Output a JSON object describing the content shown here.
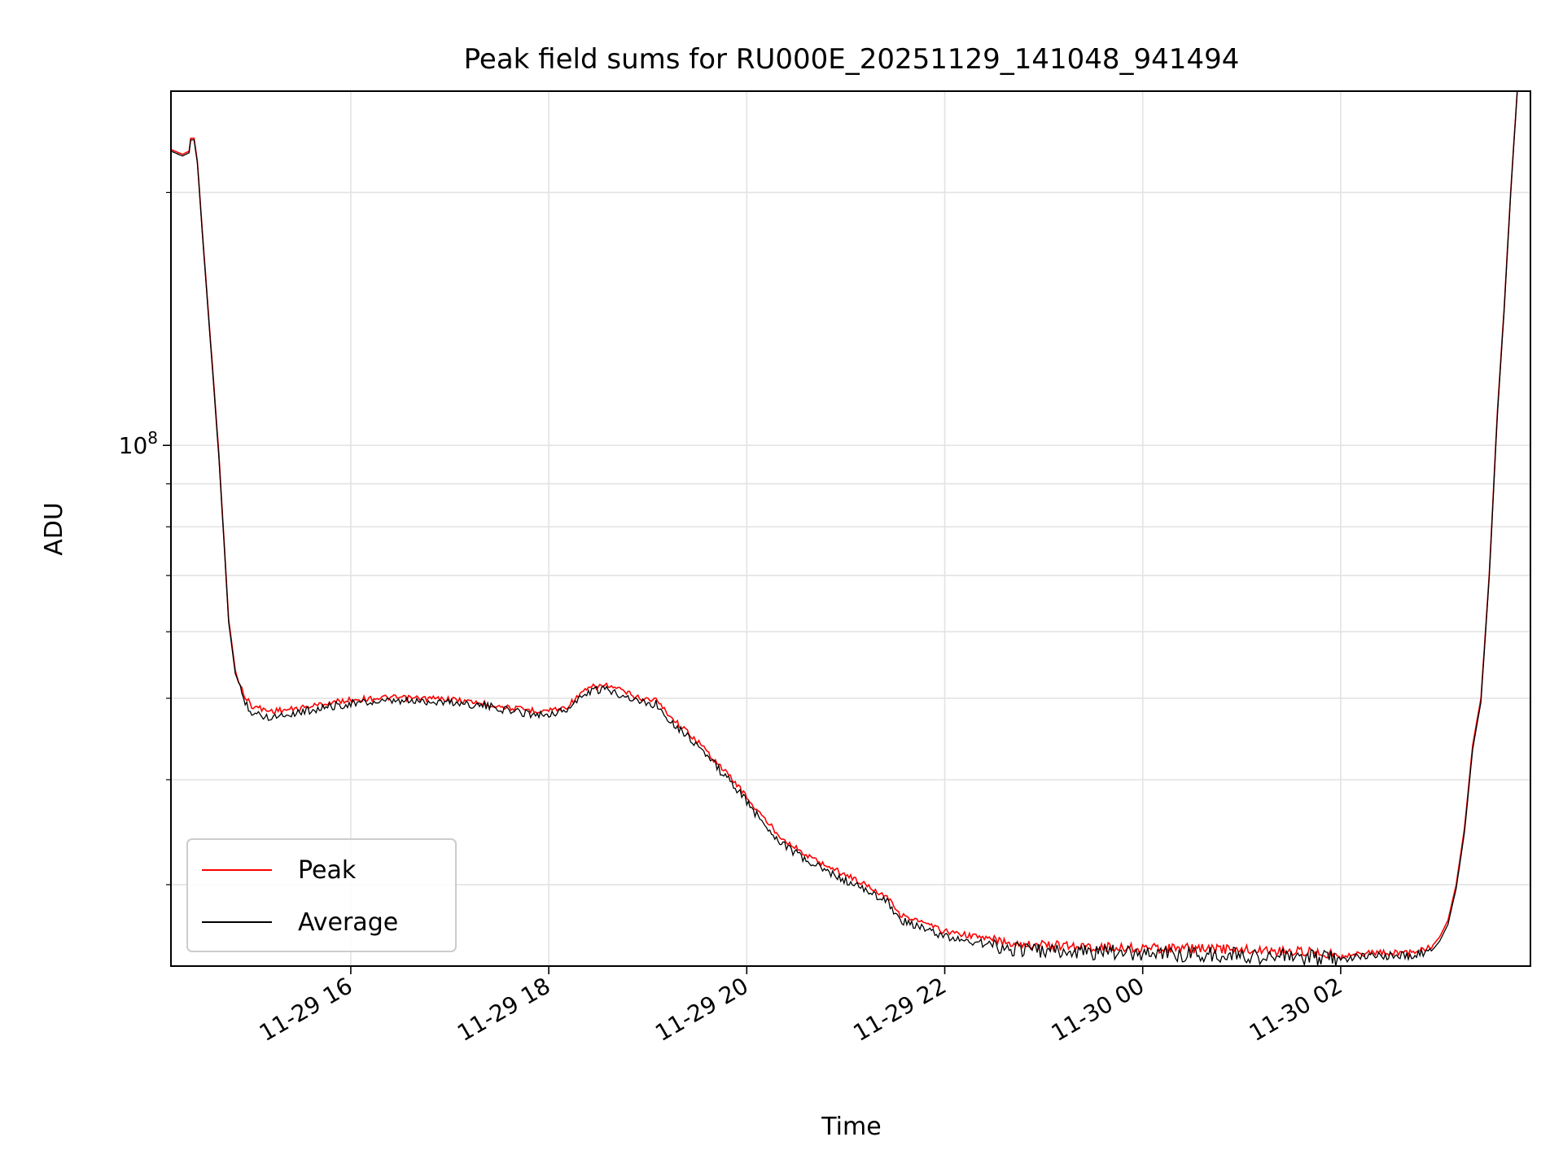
{
  "chart_data": {
    "type": "line",
    "title": "Peak field sums for RU000E_20251129_141048_941494",
    "xlabel": "Time",
    "ylabel": "ADU",
    "y_scale": "log",
    "x_tick_labels": [
      "11-29 16",
      "11-29 18",
      "11-29 20",
      "11-29 22",
      "11-30 00",
      "11-30 02"
    ],
    "x_ticks": [
      "2025-11-29 16:00",
      "2025-11-29 18:00",
      "2025-11-29 20:00",
      "2025-11-29 22:00",
      "2025-11-30 00:00",
      "2025-11-30 02:00"
    ],
    "xlim": [
      "2025-11-29 14:11",
      "2025-11-30 03:55"
    ],
    "y_major_tick": {
      "value": 100000000,
      "base": "10",
      "exponent": "8"
    },
    "y_minor_ticks": [
      30000000,
      40000000,
      50000000,
      60000000,
      70000000,
      80000000,
      90000000,
      200000000
    ],
    "ylim": [
      24000000,
      264000000
    ],
    "grid": true,
    "legend_position": "lower-left",
    "series": [
      {
        "name": "Peak",
        "color": "#ff0000",
        "points": [
          [
            "2025-11-29 14:11",
            225000000
          ],
          [
            "2025-11-29 14:18",
            222000000
          ],
          [
            "2025-11-29 14:22",
            224000000
          ],
          [
            "2025-11-29 14:23",
            232000000
          ],
          [
            "2025-11-29 14:25",
            232000000
          ],
          [
            "2025-11-29 14:27",
            218000000
          ],
          [
            "2025-11-29 14:30",
            180000000
          ],
          [
            "2025-11-29 14:33",
            150000000
          ],
          [
            "2025-11-29 14:37",
            118000000
          ],
          [
            "2025-11-29 14:40",
            98000000
          ],
          [
            "2025-11-29 14:43",
            78000000
          ],
          [
            "2025-11-29 14:46",
            62000000
          ],
          [
            "2025-11-29 14:50",
            54000000
          ],
          [
            "2025-11-29 14:55",
            50500000
          ],
          [
            "2025-11-29 15:00",
            49000000
          ],
          [
            "2025-11-29 15:10",
            48300000
          ],
          [
            "2025-11-29 15:25",
            48500000
          ],
          [
            "2025-11-29 15:45",
            49300000
          ],
          [
            "2025-11-29 16:00",
            49800000
          ],
          [
            "2025-11-29 16:20",
            50100000
          ],
          [
            "2025-11-29 16:40",
            50000000
          ],
          [
            "2025-11-29 17:00",
            49900000
          ],
          [
            "2025-11-29 17:20",
            49300000
          ],
          [
            "2025-11-29 17:40",
            48600000
          ],
          [
            "2025-11-29 17:55",
            48300000
          ],
          [
            "2025-11-29 18:10",
            48700000
          ],
          [
            "2025-11-29 18:18",
            50300000
          ],
          [
            "2025-11-29 18:25",
            51500000
          ],
          [
            "2025-11-29 18:35",
            51800000
          ],
          [
            "2025-11-29 18:45",
            51000000
          ],
          [
            "2025-11-29 18:55",
            50000000
          ],
          [
            "2025-11-29 19:05",
            49800000
          ],
          [
            "2025-11-29 19:15",
            47300000
          ],
          [
            "2025-11-29 19:30",
            44500000
          ],
          [
            "2025-11-29 19:40",
            42300000
          ],
          [
            "2025-11-29 19:55",
            39300000
          ],
          [
            "2025-11-29 20:05",
            37000000
          ],
          [
            "2025-11-29 20:20",
            34300000
          ],
          [
            "2025-11-29 20:35",
            32600000
          ],
          [
            "2025-11-29 20:50",
            31500000
          ],
          [
            "2025-11-29 21:05",
            30500000
          ],
          [
            "2025-11-29 21:20",
            29400000
          ],
          [
            "2025-11-29 21:27",
            28900000
          ],
          [
            "2025-11-29 21:32",
            27700000
          ],
          [
            "2025-11-29 21:45",
            27100000
          ],
          [
            "2025-11-29 22:00",
            26400000
          ],
          [
            "2025-11-29 22:10",
            26200000
          ],
          [
            "2025-11-29 22:20",
            26000000
          ],
          [
            "2025-11-29 22:40",
            25600000
          ],
          [
            "2025-11-29 23:00",
            25400000
          ],
          [
            "2025-11-29 23:30",
            25300000
          ],
          [
            "2025-11-30 00:00",
            25200000
          ],
          [
            "2025-11-30 00:30",
            25200000
          ],
          [
            "2025-11-30 01:00",
            25100000
          ],
          [
            "2025-11-30 01:30",
            25000000
          ],
          [
            "2025-11-30 01:50",
            24900000
          ],
          [
            "2025-11-30 02:00",
            24700000
          ],
          [
            "2025-11-30 02:20",
            24900000
          ],
          [
            "2025-11-30 02:40",
            24900000
          ],
          [
            "2025-11-30 02:55",
            25300000
          ],
          [
            "2025-11-30 03:00",
            26000000
          ],
          [
            "2025-11-30 03:05",
            27200000
          ],
          [
            "2025-11-30 03:10",
            30000000
          ],
          [
            "2025-11-30 03:15",
            35000000
          ],
          [
            "2025-11-30 03:20",
            44000000
          ],
          [
            "2025-11-30 03:25",
            50000000
          ],
          [
            "2025-11-30 03:30",
            70000000
          ],
          [
            "2025-11-30 03:35",
            110000000
          ],
          [
            "2025-11-30 03:39",
            145000000
          ],
          [
            "2025-11-30 03:43",
            200000000
          ],
          [
            "2025-11-30 03:47",
            264000000
          ]
        ]
      },
      {
        "name": "Average",
        "color": "#000000",
        "points": [
          [
            "2025-11-29 14:11",
            224000000
          ],
          [
            "2025-11-29 14:18",
            221000000
          ],
          [
            "2025-11-29 14:22",
            223000000
          ],
          [
            "2025-11-29 14:23",
            231000000
          ],
          [
            "2025-11-29 14:25",
            231000000
          ],
          [
            "2025-11-29 14:27",
            217000000
          ],
          [
            "2025-11-29 14:30",
            179000000
          ],
          [
            "2025-11-29 14:33",
            149000000
          ],
          [
            "2025-11-29 14:37",
            117000000
          ],
          [
            "2025-11-29 14:40",
            97000000
          ],
          [
            "2025-11-29 14:43",
            77500000
          ],
          [
            "2025-11-29 14:46",
            61500000
          ],
          [
            "2025-11-29 14:50",
            53500000
          ],
          [
            "2025-11-29 14:55",
            50000000
          ],
          [
            "2025-11-29 15:00",
            48000000
          ],
          [
            "2025-11-29 15:10",
            47500000
          ],
          [
            "2025-11-29 15:25",
            48000000
          ],
          [
            "2025-11-29 15:45",
            48800000
          ],
          [
            "2025-11-29 16:00",
            49300000
          ],
          [
            "2025-11-29 16:20",
            49500000
          ],
          [
            "2025-11-29 16:40",
            49600000
          ],
          [
            "2025-11-29 17:00",
            49500000
          ],
          [
            "2025-11-29 17:20",
            49000000
          ],
          [
            "2025-11-29 17:40",
            48200000
          ],
          [
            "2025-11-29 17:55",
            47800000
          ],
          [
            "2025-11-29 18:10",
            48300000
          ],
          [
            "2025-11-29 18:18",
            49800000
          ],
          [
            "2025-11-29 18:25",
            51000000
          ],
          [
            "2025-11-29 18:35",
            51200000
          ],
          [
            "2025-11-29 18:45",
            50500000
          ],
          [
            "2025-11-29 18:55",
            49500000
          ],
          [
            "2025-11-29 19:05",
            49200000
          ],
          [
            "2025-11-29 19:15",
            46800000
          ],
          [
            "2025-11-29 19:30",
            44000000
          ],
          [
            "2025-11-29 19:40",
            41800000
          ],
          [
            "2025-11-29 19:55",
            38800000
          ],
          [
            "2025-11-29 20:05",
            36500000
          ],
          [
            "2025-11-29 20:20",
            33800000
          ],
          [
            "2025-11-29 20:35",
            32100000
          ],
          [
            "2025-11-29 20:50",
            31000000
          ],
          [
            "2025-11-29 21:05",
            30000000
          ],
          [
            "2025-11-29 21:20",
            29000000
          ],
          [
            "2025-11-29 21:27",
            28400000
          ],
          [
            "2025-11-29 21:32",
            27300000
          ],
          [
            "2025-11-29 21:45",
            26700000
          ],
          [
            "2025-11-29 22:00",
            26000000
          ],
          [
            "2025-11-29 22:10",
            25800000
          ],
          [
            "2025-11-29 22:20",
            25600000
          ],
          [
            "2025-11-29 22:40",
            25200000
          ],
          [
            "2025-11-29 23:00",
            25000000
          ],
          [
            "2025-11-29 23:30",
            24900000
          ],
          [
            "2025-11-30 00:00",
            24900000
          ],
          [
            "2025-11-30 00:30",
            24800000
          ],
          [
            "2025-11-30 01:00",
            24700000
          ],
          [
            "2025-11-30 01:30",
            24600000
          ],
          [
            "2025-11-30 01:50",
            24500000
          ],
          [
            "2025-11-30 02:00",
            24500000
          ],
          [
            "2025-11-30 02:20",
            24700000
          ],
          [
            "2025-11-30 02:40",
            24700000
          ],
          [
            "2025-11-30 02:55",
            25000000
          ],
          [
            "2025-11-30 03:00",
            25700000
          ],
          [
            "2025-11-30 03:05",
            26900000
          ],
          [
            "2025-11-30 03:10",
            29700000
          ],
          [
            "2025-11-30 03:15",
            34600000
          ],
          [
            "2025-11-30 03:20",
            43500000
          ],
          [
            "2025-11-30 03:25",
            49500000
          ],
          [
            "2025-11-30 03:30",
            69500000
          ],
          [
            "2025-11-30 03:35",
            109000000
          ],
          [
            "2025-11-30 03:39",
            144000000
          ],
          [
            "2025-11-30 03:43",
            199000000
          ],
          [
            "2025-11-30 03:47",
            264000000
          ]
        ]
      }
    ]
  }
}
